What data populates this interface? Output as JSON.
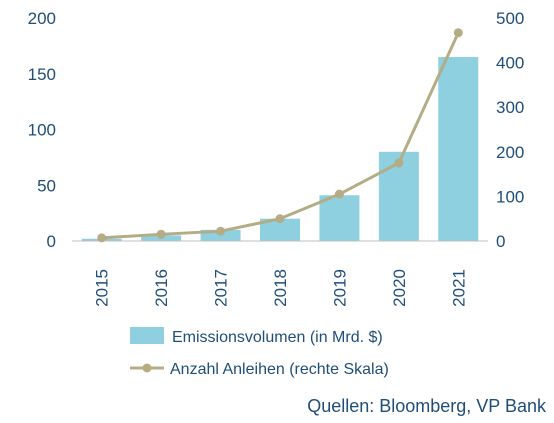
{
  "chart_data": {
    "type": "bar",
    "categories": [
      "2015",
      "2016",
      "2017",
      "2018",
      "2019",
      "2020",
      "2021"
    ],
    "series": [
      {
        "name": "Emissionsvolumen (in Mrd. $)",
        "type": "bar",
        "axis": "left",
        "values": [
          2,
          5,
          10,
          20,
          41,
          80,
          165
        ]
      },
      {
        "name": "Anzahl Anleihen (rechte Skala)",
        "type": "line",
        "axis": "right",
        "values": [
          7,
          15,
          22,
          50,
          105,
          175,
          467
        ]
      }
    ],
    "y_left": {
      "range": [
        0,
        200
      ],
      "ticks": [
        "0",
        "50",
        "100",
        "150",
        "200"
      ]
    },
    "y_right": {
      "range": [
        0,
        500
      ],
      "ticks": [
        "0",
        "100",
        "200",
        "300",
        "400",
        "500"
      ]
    },
    "legend_position": "bottom",
    "grid": false
  },
  "colors": {
    "bar": "#8ecfe0",
    "line": "#b3ac85",
    "text": "#1f4e79",
    "axis": "#bfbfbf"
  },
  "source": "Quellen: Bloomberg, VP Bank"
}
